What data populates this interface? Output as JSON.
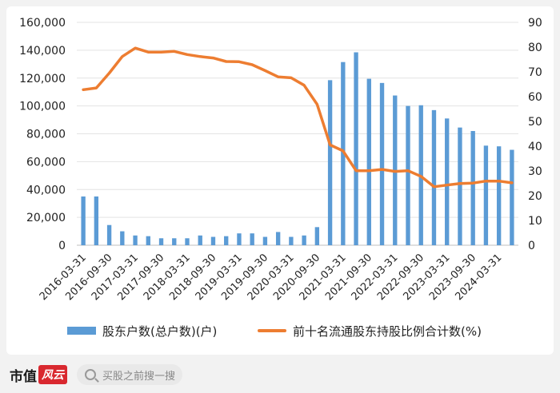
{
  "chart_data": {
    "type": "bar+line",
    "title": "",
    "x": [
      "2016-03-31",
      "2016-06-30",
      "2016-09-30",
      "2016-12-31",
      "2017-03-31",
      "2017-06-30",
      "2017-09-30",
      "2017-12-31",
      "2018-03-31",
      "2018-06-30",
      "2018-09-30",
      "2018-12-31",
      "2019-03-31",
      "2019-06-30",
      "2019-09-30",
      "2019-12-31",
      "2020-03-31",
      "2020-06-30",
      "2020-09-30",
      "2020-12-31",
      "2021-03-31",
      "2021-06-30",
      "2021-09-30",
      "2021-12-31",
      "2022-03-31",
      "2022-06-30",
      "2022-09-30",
      "2022-12-31",
      "2023-03-31",
      "2023-06-30",
      "2023-09-30",
      "2023-12-31",
      "2024-03-31",
      "2024-06-30"
    ],
    "xtick_labels": [
      "2016-03-31",
      "2016-09-30",
      "2017-03-31",
      "2017-09-30",
      "2018-03-31",
      "2018-09-30",
      "2019-03-31",
      "2019-09-30",
      "2020-03-31",
      "2020-09-30",
      "2021-03-31",
      "2021-09-30",
      "2022-03-31",
      "2022-09-30",
      "2023-03-31",
      "2023-09-30",
      "2024-03-31"
    ],
    "series": [
      {
        "name": "股东户数(总户数)(户)",
        "type": "bar",
        "axis": "left",
        "color": "#5b9bd5",
        "values": [
          35000,
          35000,
          14500,
          10000,
          7000,
          6500,
          5000,
          5000,
          5000,
          7000,
          6000,
          6500,
          8500,
          8500,
          6000,
          9500,
          6000,
          7000,
          13000,
          118500,
          131500,
          138500,
          119500,
          116500,
          107500,
          100000,
          100500,
          97000,
          91000,
          84500,
          82000,
          71500,
          71000,
          68500
        ]
      },
      {
        "name": "前十名流通股东持股比例合计数(%)",
        "type": "line",
        "axis": "right",
        "color": "#ed7d31",
        "values": [
          62.8,
          63.5,
          69.5,
          76.2,
          79.6,
          78.0,
          78.0,
          78.3,
          77.0,
          76.2,
          75.6,
          74.2,
          74.1,
          72.9,
          70.5,
          68.0,
          67.6,
          64.6,
          56.9,
          40.5,
          38.1,
          30.1,
          30.1,
          30.6,
          29.8,
          30.1,
          27.8,
          23.6,
          24.3,
          24.9,
          25.1,
          25.9,
          25.9,
          25.2
        ]
      }
    ],
    "y_left": {
      "min": 0,
      "max": 160000,
      "ticks": [
        "0",
        "20,000",
        "40,000",
        "60,000",
        "80,000",
        "100,000",
        "120,000",
        "140,000",
        "160,000"
      ]
    },
    "y_right": {
      "min": 0,
      "max": 90,
      "ticks": [
        "0",
        "10",
        "20",
        "30",
        "40",
        "50",
        "60",
        "70",
        "80",
        "90"
      ]
    },
    "grid": true,
    "legend_position": "bottom"
  },
  "footer": {
    "brand": "市值",
    "logo": "风云",
    "search_placeholder": "买股之前搜一搜"
  }
}
